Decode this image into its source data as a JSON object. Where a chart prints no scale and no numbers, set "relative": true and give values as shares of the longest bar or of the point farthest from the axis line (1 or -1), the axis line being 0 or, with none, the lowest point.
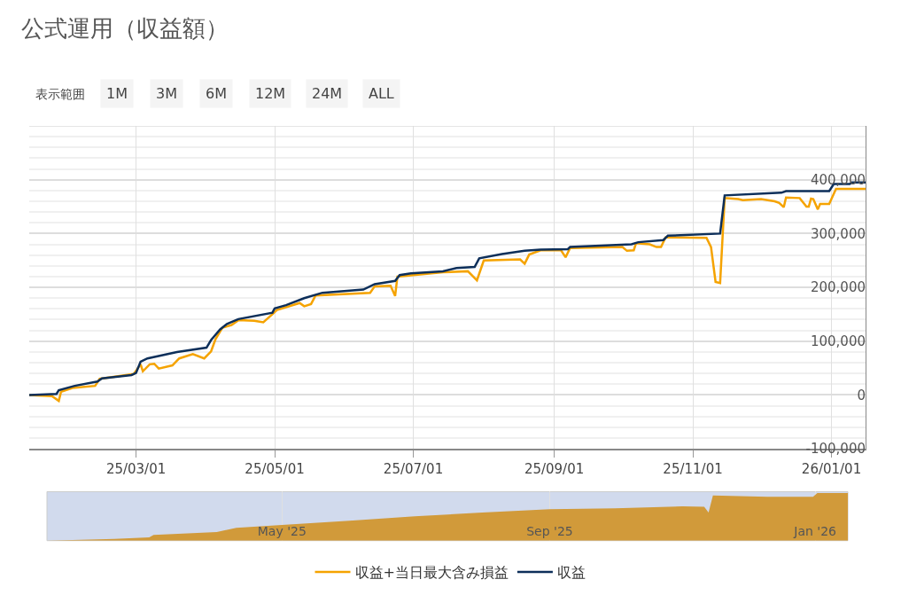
{
  "chart_data": [
    {
      "type": "line",
      "title": "公式運用（収益額）",
      "annotations": [
        "表示範囲",
        "1M",
        "3M",
        "6M",
        "12M",
        "24M",
        "ALL"
      ],
      "xlim": [
        "2025-01-13",
        "2026-01-16"
      ],
      "xticks": [
        {
          "value": "2025-03-01",
          "label": "25/03/01"
        },
        {
          "value": "2025-05-01",
          "label": "25/05/01"
        },
        {
          "value": "2025-07-01",
          "label": "25/07/01"
        },
        {
          "value": "2025-09-01",
          "label": "25/09/01"
        },
        {
          "value": "2025-11-01",
          "label": "25/11/01"
        },
        {
          "value": "2026-01-01",
          "label": "26/01/01"
        }
      ],
      "ylim": [
        -100000,
        500000
      ],
      "yticks": [
        {
          "value": -100000,
          "label": "-100,000"
        },
        {
          "value": 0,
          "label": "0"
        },
        {
          "value": 100000,
          "label": "100,000"
        },
        {
          "value": 200000,
          "label": "200,000"
        },
        {
          "value": 300000,
          "label": "300,000"
        },
        {
          "value": 400000,
          "label": "400,000"
        }
      ],
      "grid": true,
      "legend": "bottom",
      "marker": "none",
      "line_style": "solid",
      "series": [
        {
          "name": "収益+当日最大含み損益",
          "color": "#f5a300",
          "x": [
            "2025-01-13",
            "2025-01-23",
            "2025-01-26",
            "2025-01-27",
            "2025-02-01",
            "2025-02-11",
            "2025-02-13",
            "2025-02-28",
            "2025-03-03",
            "2025-03-04",
            "2025-03-07",
            "2025-03-09",
            "2025-03-11",
            "2025-03-17",
            "2025-03-20",
            "2025-03-26",
            "2025-03-31",
            "2025-04-03",
            "2025-04-05",
            "2025-04-08",
            "2025-04-12",
            "2025-04-15",
            "2025-04-22",
            "2025-04-26",
            "2025-04-30",
            "2025-05-02",
            "2025-05-12",
            "2025-05-14",
            "2025-05-17",
            "2025-05-19",
            "2025-06-12",
            "2025-06-14",
            "2025-06-21",
            "2025-06-23",
            "2025-06-24",
            "2025-07-14",
            "2025-07-25",
            "2025-07-29",
            "2025-08-01",
            "2025-08-17",
            "2025-08-19",
            "2025-08-21",
            "2025-08-26",
            "2025-09-04",
            "2025-09-06",
            "2025-09-08",
            "2025-10-01",
            "2025-10-03",
            "2025-10-06",
            "2025-10-07",
            "2025-10-13",
            "2025-10-16",
            "2025-10-18",
            "2025-10-20",
            "2025-11-07",
            "2025-11-09",
            "2025-11-11",
            "2025-11-13",
            "2025-11-15",
            "2025-11-21",
            "2025-11-23",
            "2025-12-01",
            "2025-12-07",
            "2025-12-09",
            "2025-12-11",
            "2025-12-12",
            "2025-12-18",
            "2025-12-21",
            "2025-12-22",
            "2025-12-23",
            "2025-12-24",
            "2025-12-26",
            "2025-12-27",
            "2025-12-31",
            "2026-01-03",
            "2026-01-16"
          ],
          "values": [
            0,
            -2000,
            -11000,
            6000,
            13000,
            17000,
            30000,
            39000,
            57000,
            44000,
            57000,
            58000,
            49000,
            55000,
            68000,
            76000,
            68000,
            81000,
            104000,
            125000,
            130000,
            139000,
            138000,
            135000,
            150000,
            158000,
            171000,
            165000,
            169000,
            185000,
            190000,
            202000,
            203000,
            184000,
            220000,
            228000,
            230000,
            213000,
            250000,
            252000,
            244000,
            261000,
            269000,
            269000,
            256000,
            273000,
            275000,
            268000,
            269000,
            282000,
            280000,
            275000,
            275000,
            293000,
            292000,
            275000,
            210000,
            208000,
            366000,
            364000,
            362000,
            364000,
            360000,
            357000,
            349000,
            367000,
            366000,
            350000,
            350000,
            365000,
            364000,
            345000,
            355000,
            355000,
            383000,
            383000
          ]
        },
        {
          "name": "収益",
          "color": "#0d2f5a",
          "x": [
            "2025-01-13",
            "2025-01-25",
            "2025-01-26",
            "2025-02-02",
            "2025-02-12",
            "2025-02-14",
            "2025-02-27",
            "2025-03-01",
            "2025-03-03",
            "2025-03-06",
            "2025-03-19",
            "2025-04-01",
            "2025-04-03",
            "2025-04-07",
            "2025-04-10",
            "2025-04-15",
            "2025-04-30",
            "2025-05-01",
            "2025-05-06",
            "2025-05-14",
            "2025-05-22",
            "2025-06-09",
            "2025-06-14",
            "2025-06-23",
            "2025-06-25",
            "2025-06-30",
            "2025-07-14",
            "2025-07-20",
            "2025-07-28",
            "2025-07-30",
            "2025-08-09",
            "2025-08-19",
            "2025-08-26",
            "2025-09-07",
            "2025-09-08",
            "2025-10-05",
            "2025-10-08",
            "2025-10-19",
            "2025-10-21",
            "2025-11-13",
            "2025-11-15",
            "2025-12-10",
            "2025-12-12",
            "2025-12-31",
            "2026-01-02",
            "2026-01-09",
            "2026-01-10",
            "2026-01-16"
          ],
          "values": [
            0,
            2000,
            9000,
            17000,
            25000,
            31000,
            37000,
            41000,
            62000,
            68000,
            80000,
            88000,
            102000,
            122000,
            132000,
            141000,
            153000,
            161000,
            167000,
            180000,
            190000,
            196000,
            206000,
            212000,
            223000,
            226000,
            230000,
            236000,
            238000,
            254000,
            262000,
            268000,
            270000,
            271000,
            275000,
            280000,
            284000,
            288000,
            296000,
            300000,
            371000,
            376000,
            379000,
            379000,
            392000,
            392000,
            395000,
            395000
          ]
        }
      ]
    },
    {
      "type": "area",
      "relative": true,
      "tick_labels": "x",
      "grid": "x",
      "xlim": [
        "2025-01-13",
        "2026-01-16"
      ],
      "xticks": [
        {
          "value": "2025-05-01",
          "label": "May '25"
        },
        {
          "value": "2025-09-01",
          "label": "Sep '25"
        },
        {
          "value": "2026-01-01",
          "label": "Jan '26"
        }
      ],
      "series": [
        {
          "color": "#d19a3a",
          "x": [
            "2025-01-13",
            "2025-02-13",
            "2025-03-01",
            "2025-03-03",
            "2025-04-01",
            "2025-04-10",
            "2025-05-01",
            "2025-06-01",
            "2025-07-01",
            "2025-08-01",
            "2025-09-01",
            "2025-10-01",
            "2025-11-01",
            "2025-11-11",
            "2025-11-13",
            "2025-11-15",
            "2025-12-10",
            "2025-12-31",
            "2026-01-02",
            "2026-01-16"
          ],
          "values": [
            0,
            0.035,
            0.07,
            0.12,
            0.18,
            0.27,
            0.33,
            0.42,
            0.51,
            0.59,
            0.66,
            0.68,
            0.72,
            0.71,
            0.59,
            0.95,
            0.92,
            0.92,
            1,
            1
          ]
        }
      ]
    }
  ]
}
